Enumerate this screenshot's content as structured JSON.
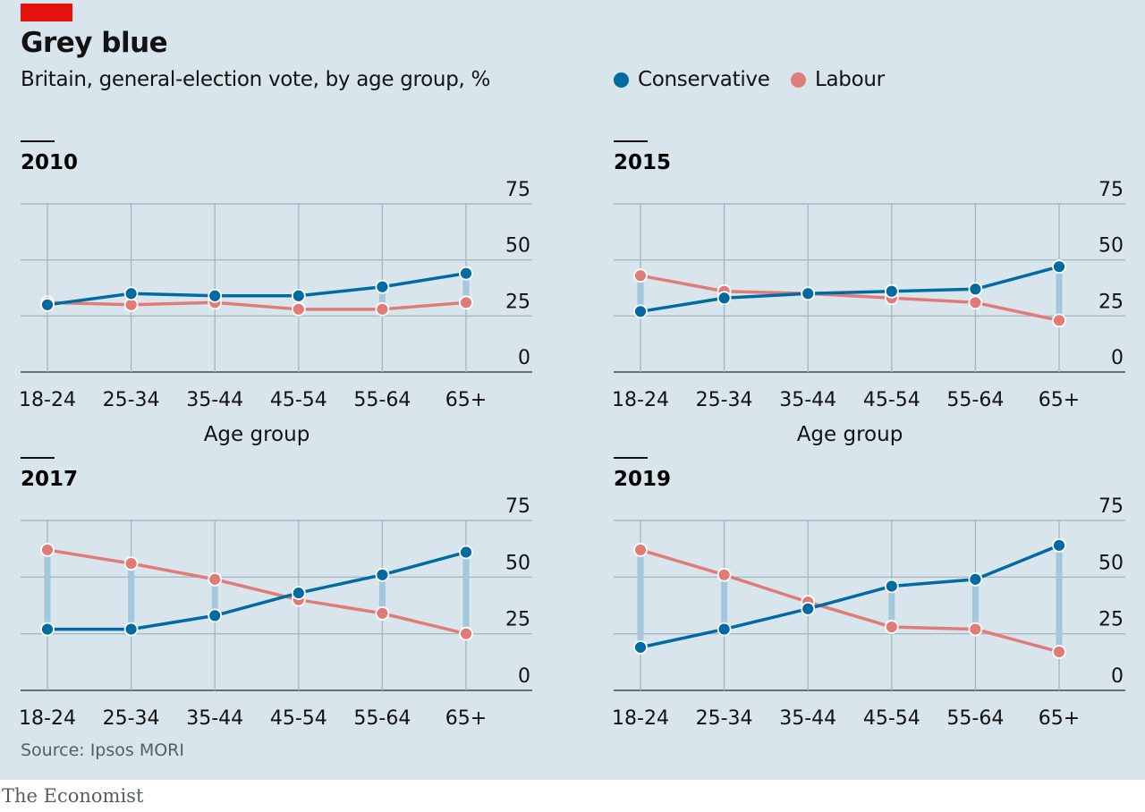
{
  "title": "Grey blue",
  "subtitle": "Britain, general-election vote, by age group, %",
  "legend": [
    {
      "label": "Conservative",
      "color": "#006ba2"
    },
    {
      "label": "Labour",
      "color": "#e07b78"
    }
  ],
  "source": "Source: Ipsos MORI",
  "brand": "The Economist",
  "colors": {
    "conservative": "#006ba2",
    "labour": "#e07b78",
    "gap": "#a3c7dc",
    "grid": "#a7b9c3",
    "background": "#d8e5ec"
  },
  "chart_data": [
    {
      "type": "line",
      "title": "2010",
      "xlabel": "Age group",
      "categories": [
        "18-24",
        "25-34",
        "35-44",
        "45-54",
        "55-64",
        "65+"
      ],
      "ylim": [
        0,
        75
      ],
      "yticks": [
        0,
        25,
        50,
        75
      ],
      "series": [
        {
          "name": "Conservative",
          "values": [
            30,
            35,
            34,
            34,
            38,
            44
          ]
        },
        {
          "name": "Labour",
          "values": [
            31,
            30,
            31,
            28,
            28,
            31
          ]
        }
      ]
    },
    {
      "type": "line",
      "title": "2015",
      "xlabel": "Age group",
      "categories": [
        "18-24",
        "25-34",
        "35-44",
        "45-54",
        "55-64",
        "65+"
      ],
      "ylim": [
        0,
        75
      ],
      "yticks": [
        0,
        25,
        50,
        75
      ],
      "series": [
        {
          "name": "Conservative",
          "values": [
            27,
            33,
            35,
            36,
            37,
            47
          ]
        },
        {
          "name": "Labour",
          "values": [
            43,
            36,
            35,
            33,
            31,
            23
          ]
        }
      ]
    },
    {
      "type": "line",
      "title": "2017",
      "xlabel": "",
      "categories": [
        "18-24",
        "25-34",
        "35-44",
        "45-54",
        "55-64",
        "65+"
      ],
      "ylim": [
        0,
        75
      ],
      "yticks": [
        0,
        25,
        50,
        75
      ],
      "series": [
        {
          "name": "Conservative",
          "values": [
            27,
            27,
            33,
            43,
            51,
            61
          ]
        },
        {
          "name": "Labour",
          "values": [
            62,
            56,
            49,
            40,
            34,
            25
          ]
        }
      ]
    },
    {
      "type": "line",
      "title": "2019",
      "xlabel": "",
      "categories": [
        "18-24",
        "25-34",
        "35-44",
        "45-54",
        "55-64",
        "65+"
      ],
      "ylim": [
        0,
        75
      ],
      "yticks": [
        0,
        25,
        50,
        75
      ],
      "series": [
        {
          "name": "Conservative",
          "values": [
            19,
            27,
            36,
            46,
            49,
            64
          ]
        },
        {
          "name": "Labour",
          "values": [
            62,
            51,
            39,
            28,
            27,
            17
          ]
        }
      ]
    }
  ]
}
